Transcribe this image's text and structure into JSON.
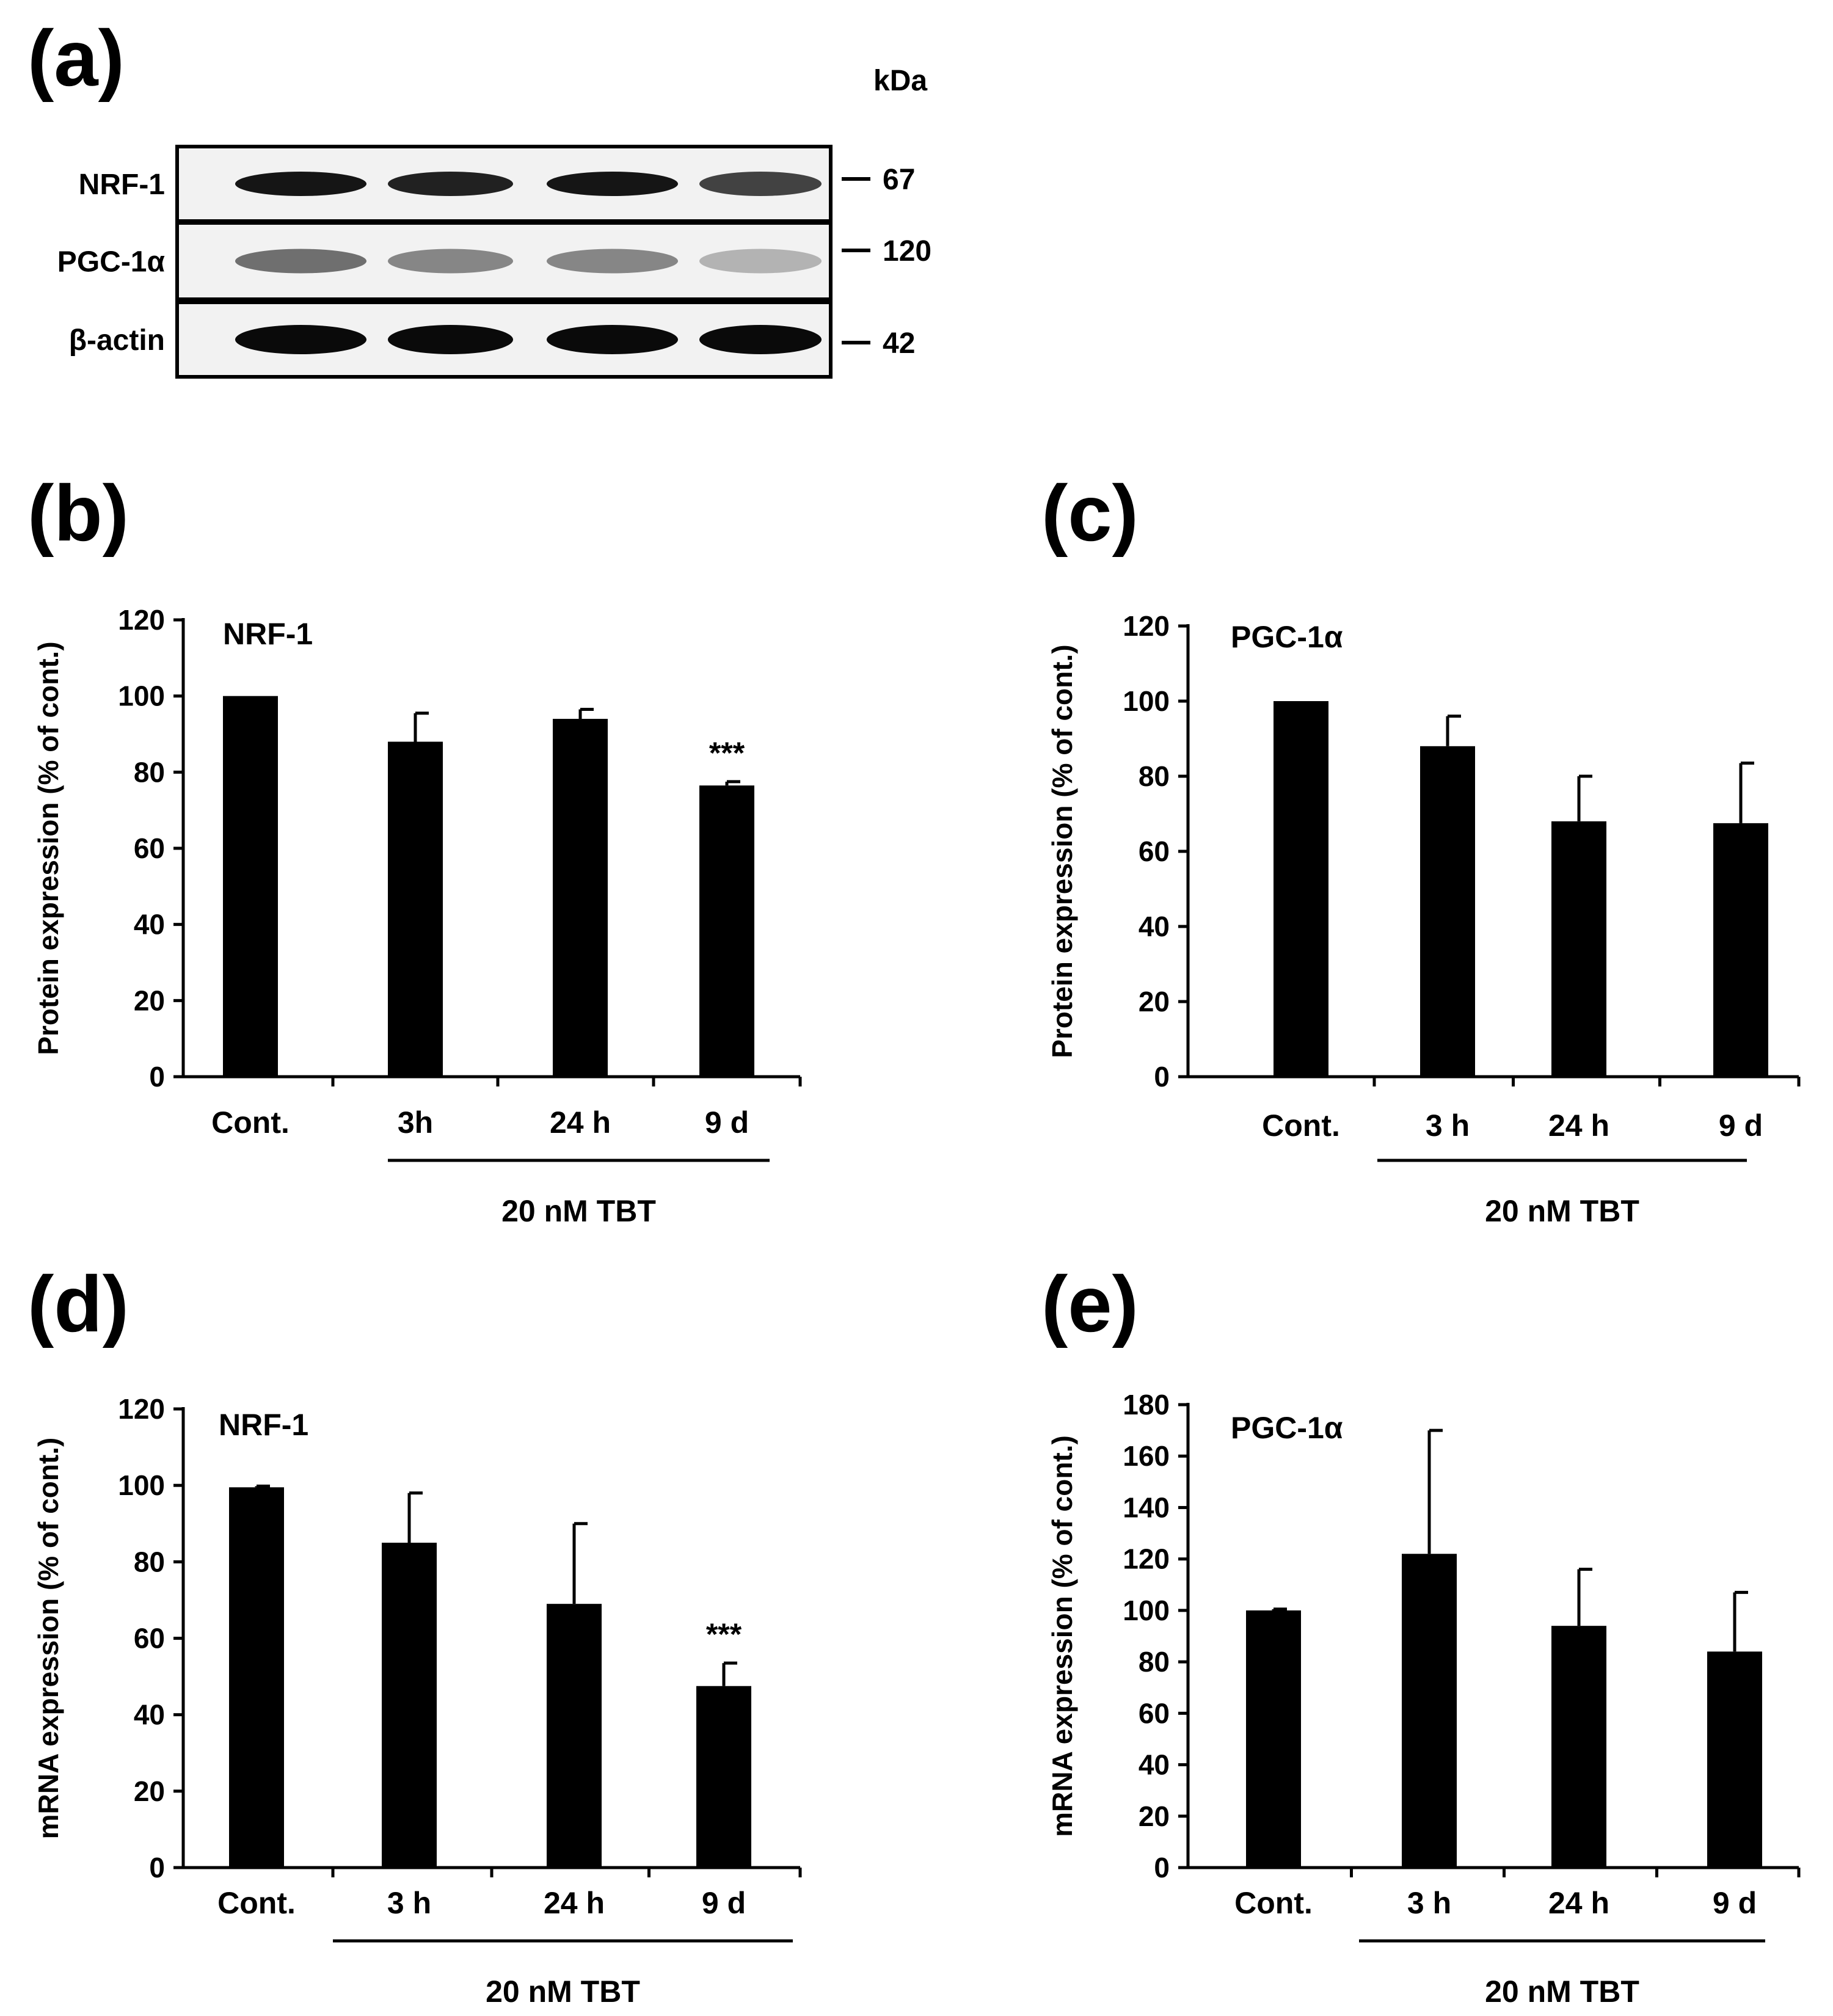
{
  "blot": {
    "letter": "(a)",
    "unit": "kDa",
    "rows": [
      {
        "name": "NRF-1",
        "kda": "67",
        "intensity": [
          0.95,
          0.9,
          0.95,
          0.75
        ]
      },
      {
        "name": "PGC-1α",
        "kda": "120",
        "intensity": [
          0.55,
          0.45,
          0.45,
          0.25
        ]
      },
      {
        "name": "β-actin",
        "kda": "42",
        "intensity": [
          1,
          1,
          1,
          1
        ]
      }
    ]
  },
  "chart_data": [
    {
      "id": "b",
      "letter": "(b)",
      "type": "bar",
      "title": "NRF-1",
      "ylabel": "Protein expression (% of cont.)",
      "ylim": [
        0,
        120
      ],
      "yticks": [
        "0",
        "20",
        "40",
        "60",
        "80",
        "100",
        "120"
      ],
      "categories": [
        "Cont.",
        "3h",
        "24 h",
        "9 d"
      ],
      "values": [
        100,
        88,
        94,
        76.5
      ],
      "errors": [
        0,
        7.5,
        2.5,
        1
      ],
      "significance": [
        "",
        "",
        "",
        "***"
      ],
      "group_label": "20 nM TBT"
    },
    {
      "id": "c",
      "letter": "(c)",
      "type": "bar",
      "title": "PGC-1α",
      "ylabel": "Protein expression (% of cont.)",
      "ylim": [
        0,
        120
      ],
      "yticks": [
        "0",
        "20",
        "40",
        "60",
        "80",
        "100",
        "120"
      ],
      "categories": [
        "Cont.",
        "3 h",
        "24 h",
        "9 d"
      ],
      "values": [
        100,
        88,
        68,
        67.5
      ],
      "errors": [
        0,
        8,
        12,
        16
      ],
      "significance": [
        "",
        "",
        "",
        ""
      ],
      "group_label": "20 nM TBT"
    },
    {
      "id": "d",
      "letter": "(d)",
      "type": "bar",
      "title": "NRF-1",
      "ylabel": "mRNA expression (% of cont.)",
      "ylim": [
        0,
        120
      ],
      "yticks": [
        "0",
        "20",
        "40",
        "60",
        "80",
        "100",
        "120"
      ],
      "categories": [
        "Cont.",
        "3 h",
        "24 h",
        "9 d"
      ],
      "values": [
        99.5,
        85,
        69,
        47.5
      ],
      "errors": [
        0.3,
        13,
        21,
        6
      ],
      "significance": [
        "",
        "",
        "",
        "***"
      ],
      "group_label": "20 nM TBT"
    },
    {
      "id": "e",
      "letter": "(e)",
      "type": "bar",
      "title": "PGC-1α",
      "ylabel": "mRNA expression (% of cont.)",
      "ylim": [
        0,
        180
      ],
      "yticks": [
        "0",
        "20",
        "40",
        "60",
        "80",
        "100",
        "120",
        "140",
        "160",
        "180"
      ],
      "categories": [
        "Cont.",
        "3 h",
        "24 h",
        "9 d"
      ],
      "values": [
        100,
        122,
        94,
        84
      ],
      "errors": [
        0.5,
        48,
        22,
        23
      ],
      "significance": [
        "",
        "",
        "",
        ""
      ],
      "group_label": "20 nM TBT"
    }
  ]
}
